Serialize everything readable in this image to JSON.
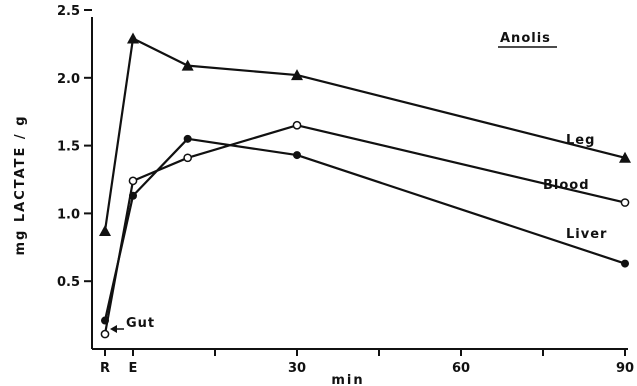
{
  "chart_data": {
    "type": "line",
    "title": "Anolis",
    "xlabel": "min",
    "ylabel": "mg LACTATE / g",
    "ylim": [
      0,
      2.5
    ],
    "x_category_ticks": [
      "R",
      "E"
    ],
    "x_numeric_ticks": [
      "30",
      "60",
      "90"
    ],
    "y_ticks": [
      "0.5",
      "1.0",
      "1.5",
      "2.0",
      "2.5"
    ],
    "series": [
      {
        "name": "Leg",
        "marker": "filled-triangle",
        "points": [
          {
            "x": "R",
            "y": 0.87
          },
          {
            "x": "E",
            "y": 2.29
          },
          {
            "x": 10,
            "y": 2.09
          },
          {
            "x": 30,
            "y": 2.02
          },
          {
            "x": 90,
            "y": 1.41
          }
        ]
      },
      {
        "name": "Blood",
        "marker": "open-circle",
        "points": [
          {
            "x": "R",
            "y": 0.11
          },
          {
            "x": "E",
            "y": 1.24
          },
          {
            "x": 10,
            "y": 1.41
          },
          {
            "x": 30,
            "y": 1.65
          },
          {
            "x": 90,
            "y": 1.08
          }
        ]
      },
      {
        "name": "Liver",
        "marker": "filled-circle",
        "points": [
          {
            "x": "R",
            "y": 0.21
          },
          {
            "x": "E",
            "y": 1.13
          },
          {
            "x": 10,
            "y": 1.55
          },
          {
            "x": 30,
            "y": 1.43
          },
          {
            "x": 90,
            "y": 0.63
          }
        ]
      }
    ],
    "annotations": [
      {
        "text": "Gut",
        "arrow_to": {
          "x": "R",
          "y": 0.15
        }
      }
    ],
    "grid": false,
    "legend": "labels placed next to lines"
  }
}
